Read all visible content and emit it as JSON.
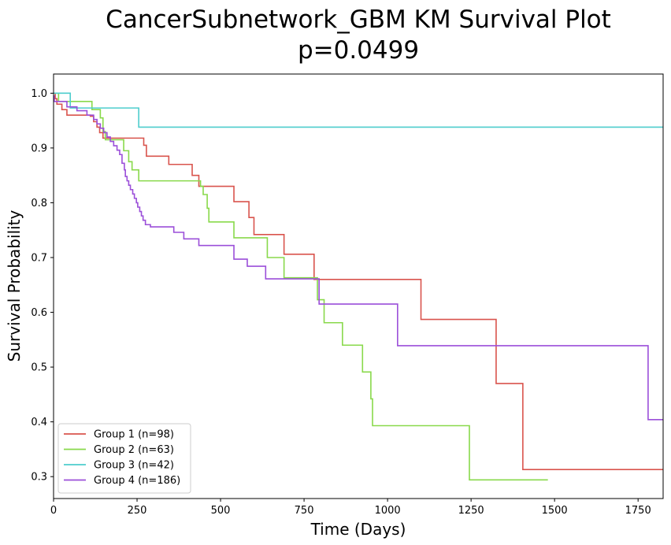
{
  "chart_data": {
    "type": "line",
    "title": "CancerSubnetwork_GBM KM Survival Plot",
    "subtitle": "p=0.0499",
    "xlabel": "Time (Days)",
    "ylabel": "Survival Probability",
    "xlim": [
      0,
      1825
    ],
    "ylim": [
      0.26,
      1.035
    ],
    "xticks": [
      0,
      250,
      500,
      750,
      1000,
      1250,
      1500,
      1750
    ],
    "xtick_labels": [
      "0",
      "250",
      "500",
      "750",
      "1000",
      "1250",
      "1500",
      "1750"
    ],
    "yticks": [
      0.3,
      0.4,
      0.5,
      0.6,
      0.7,
      0.8,
      0.9,
      1.0
    ],
    "ytick_labels": [
      "0.3",
      "0.4",
      "0.5",
      "0.6",
      "0.7",
      "0.8",
      "0.9",
      "1.0"
    ],
    "grid": false,
    "legend_position": "bottom-left",
    "step": true,
    "series": [
      {
        "name": "Group 1 (n=98)",
        "color": "#d9544d",
        "points": [
          [
            0,
            1.0
          ],
          [
            5,
            0.99
          ],
          [
            10,
            0.98
          ],
          [
            25,
            0.97
          ],
          [
            40,
            0.96
          ],
          [
            110,
            0.958
          ],
          [
            120,
            0.948
          ],
          [
            130,
            0.938
          ],
          [
            138,
            0.928
          ],
          [
            148,
            0.918
          ],
          [
            270,
            0.905
          ],
          [
            278,
            0.885
          ],
          [
            345,
            0.87
          ],
          [
            415,
            0.85
          ],
          [
            435,
            0.83
          ],
          [
            540,
            0.802
          ],
          [
            585,
            0.773
          ],
          [
            600,
            0.742
          ],
          [
            690,
            0.706
          ],
          [
            780,
            0.66
          ],
          [
            1100,
            0.587
          ],
          [
            1325,
            0.47
          ],
          [
            1405,
            0.313
          ],
          [
            1825,
            0.313
          ]
        ]
      },
      {
        "name": "Group 2 (n=63)",
        "color": "#89d94b",
        "points": [
          [
            0,
            1.0
          ],
          [
            15,
            0.985
          ],
          [
            115,
            0.97
          ],
          [
            140,
            0.955
          ],
          [
            148,
            0.93
          ],
          [
            155,
            0.915
          ],
          [
            210,
            0.895
          ],
          [
            225,
            0.875
          ],
          [
            235,
            0.86
          ],
          [
            255,
            0.84
          ],
          [
            440,
            0.83
          ],
          [
            448,
            0.815
          ],
          [
            460,
            0.79
          ],
          [
            465,
            0.765
          ],
          [
            540,
            0.736
          ],
          [
            640,
            0.7
          ],
          [
            690,
            0.663
          ],
          [
            790,
            0.623
          ],
          [
            810,
            0.581
          ],
          [
            865,
            0.54
          ],
          [
            925,
            0.491
          ],
          [
            950,
            0.442
          ],
          [
            955,
            0.393
          ],
          [
            1245,
            0.294
          ],
          [
            1480,
            0.294
          ]
        ]
      },
      {
        "name": "Group 3 (n=42)",
        "color": "#4ecdcd",
        "points": [
          [
            0,
            1.0
          ],
          [
            50,
            0.973
          ],
          [
            255,
            0.938
          ],
          [
            1825,
            0.938
          ]
        ]
      },
      {
        "name": "Group 4 (n=186)",
        "color": "#9b4fd9",
        "points": [
          [
            0,
            0.995
          ],
          [
            2,
            0.985
          ],
          [
            40,
            0.975
          ],
          [
            70,
            0.968
          ],
          [
            100,
            0.96
          ],
          [
            120,
            0.952
          ],
          [
            130,
            0.944
          ],
          [
            140,
            0.936
          ],
          [
            150,
            0.928
          ],
          [
            160,
            0.92
          ],
          [
            170,
            0.912
          ],
          [
            180,
            0.904
          ],
          [
            190,
            0.896
          ],
          [
            198,
            0.888
          ],
          [
            205,
            0.872
          ],
          [
            212,
            0.86
          ],
          [
            215,
            0.848
          ],
          [
            220,
            0.84
          ],
          [
            225,
            0.832
          ],
          [
            230,
            0.824
          ],
          [
            237,
            0.816
          ],
          [
            242,
            0.808
          ],
          [
            248,
            0.8
          ],
          [
            252,
            0.792
          ],
          [
            258,
            0.784
          ],
          [
            263,
            0.776
          ],
          [
            268,
            0.768
          ],
          [
            275,
            0.76
          ],
          [
            290,
            0.756
          ],
          [
            360,
            0.746
          ],
          [
            390,
            0.734
          ],
          [
            435,
            0.722
          ],
          [
            540,
            0.697
          ],
          [
            580,
            0.684
          ],
          [
            635,
            0.661
          ],
          [
            795,
            0.615
          ],
          [
            1030,
            0.539
          ],
          [
            1780,
            0.404
          ],
          [
            1825,
            0.404
          ]
        ]
      }
    ]
  }
}
